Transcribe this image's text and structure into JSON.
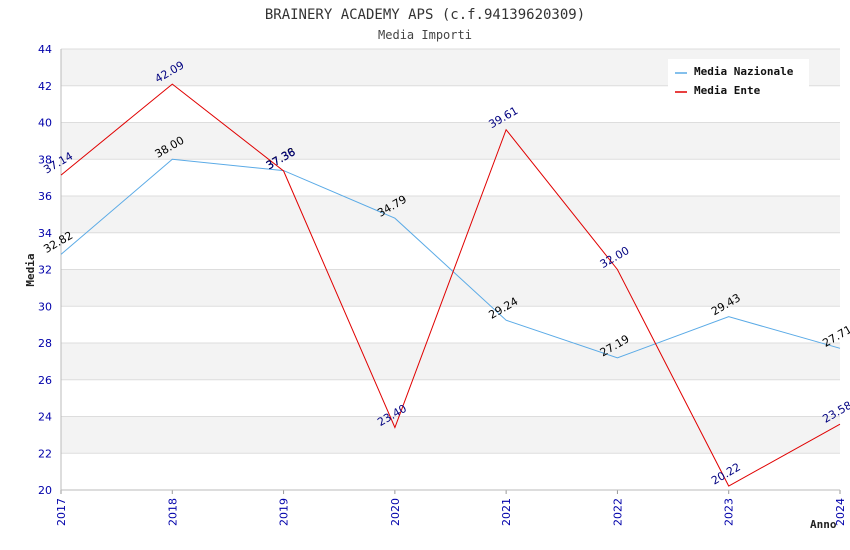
{
  "chart_data": {
    "type": "line",
    "title": "BRAINERY ACADEMY APS (c.f.94139620309)",
    "subtitle": "Media Importi",
    "xlabel": "Anno",
    "ylabel": "Media",
    "categories": [
      "2017",
      "2018",
      "2019",
      "2020",
      "2021",
      "2022",
      "2023",
      "2024"
    ],
    "ylim": [
      20,
      44
    ],
    "ytick_step": 2,
    "grid": true,
    "legend_position": "top-right",
    "series": [
      {
        "name": "Media Nazionale",
        "color": "#5aaae6",
        "label_color": "#000000",
        "values": [
          32.82,
          38.0,
          37.38,
          34.79,
          29.24,
          27.19,
          29.43,
          27.71
        ],
        "labels": [
          "32.82",
          "38.00",
          "37.38",
          "34.79",
          "29.24",
          "27.19",
          "29.43",
          "27.71"
        ]
      },
      {
        "name": "Media Ente",
        "color": "#e00000",
        "label_color": "#000080",
        "values": [
          37.14,
          42.09,
          37.36,
          23.4,
          39.61,
          32.0,
          20.22,
          23.58
        ],
        "labels": [
          "37.14",
          "42.09",
          "37.36",
          "23.40",
          "39.61",
          "32.00",
          "20.22",
          "23.58"
        ]
      }
    ]
  }
}
